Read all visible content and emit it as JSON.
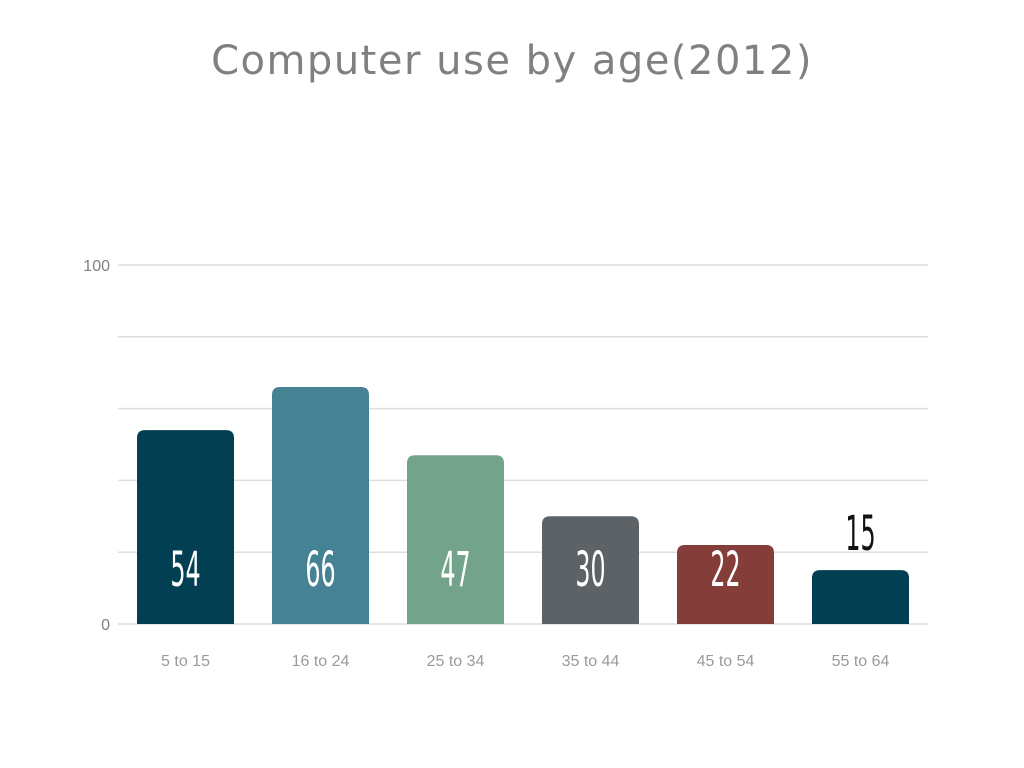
{
  "chart_data": {
    "type": "bar",
    "title": "Computer use by age(2012)",
    "categories": [
      "5 to 15",
      "16 to 24",
      "25 to 34",
      "35 to 44",
      "45 to 54",
      "55 to 64"
    ],
    "values": [
      54,
      66,
      47,
      30,
      22,
      15
    ],
    "colors": [
      "#033f52",
      "#458394",
      "#74a38b",
      "#5c6266",
      "#843d39",
      "#033f52"
    ],
    "ylim": [
      0,
      100
    ],
    "y_tick_labels": [
      "0",
      "100"
    ],
    "gridlines": [
      0,
      20,
      40,
      60,
      80,
      100
    ],
    "grid": true,
    "xlabel": "",
    "ylabel": ""
  }
}
